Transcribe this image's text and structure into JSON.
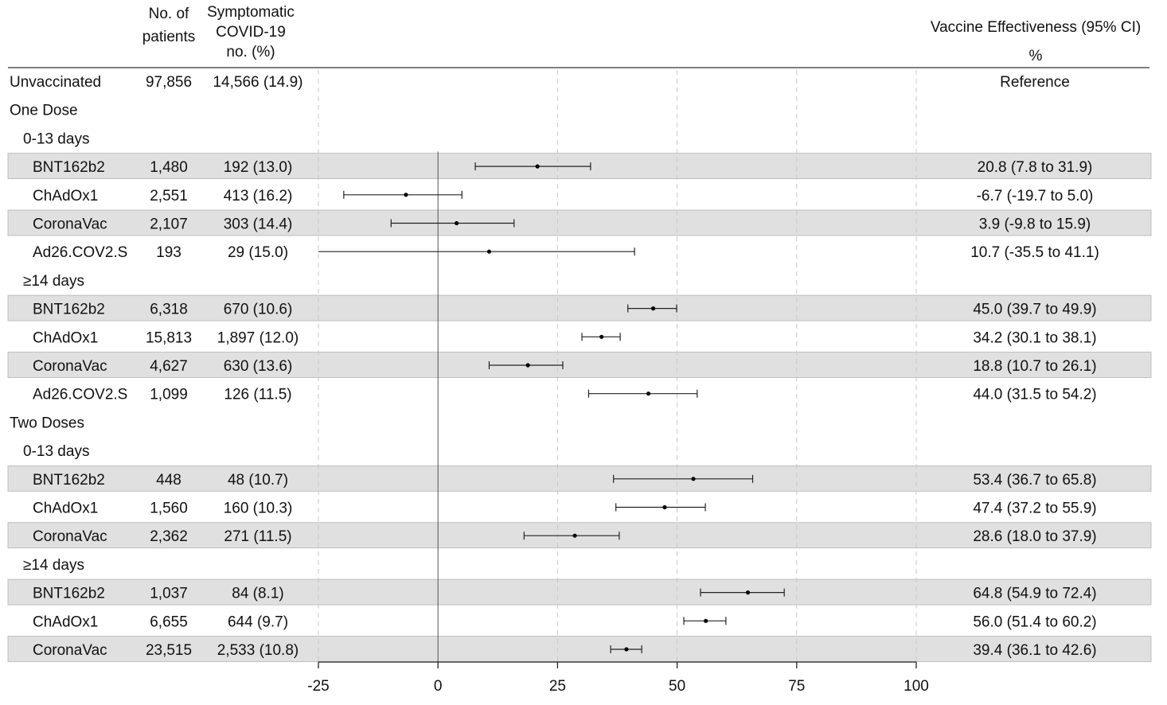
{
  "header": {
    "col_patients": [
      "No. of",
      "patients"
    ],
    "col_symptomatic": [
      "Symptomatic",
      "COVID-19",
      "no. (%)"
    ],
    "col_effectiveness": [
      "Vaccine Effectiveness (95% CI)",
      "%"
    ]
  },
  "chart_data": {
    "type": "forest",
    "x_ticks": [
      -25,
      0,
      25,
      50,
      75,
      100
    ],
    "xlim": [
      -25,
      100
    ],
    "reference_line": 0,
    "grid": "vertical dashed",
    "rows": [
      {
        "kind": "data",
        "label": "Unvaccinated",
        "level": 0,
        "patients": "97,856",
        "symptomatic": "14,566 (14.9)",
        "ve_text": "Reference",
        "shaded": false
      },
      {
        "kind": "group",
        "label": "One Dose",
        "level": 0
      },
      {
        "kind": "group",
        "label": "0-13 days",
        "level": 1
      },
      {
        "kind": "data",
        "label": "BNT162b2",
        "level": 2,
        "patients": "1,480",
        "symptomatic": "192 (13.0)",
        "ve": 20.8,
        "lo": 7.8,
        "hi": 31.9,
        "ve_text": "20.8 (7.8 to 31.9)",
        "shaded": true
      },
      {
        "kind": "data",
        "label": "ChAdOx1",
        "level": 2,
        "patients": "2,551",
        "symptomatic": "413 (16.2)",
        "ve": -6.7,
        "lo": -19.7,
        "hi": 5.0,
        "ve_text": "-6.7 (-19.7 to 5.0)",
        "shaded": false
      },
      {
        "kind": "data",
        "label": "CoronaVac",
        "level": 2,
        "patients": "2,107",
        "symptomatic": "303 (14.4)",
        "ve": 3.9,
        "lo": -9.8,
        "hi": 15.9,
        "ve_text": "3.9 (-9.8 to 15.9)",
        "shaded": true
      },
      {
        "kind": "data",
        "label": "Ad26.COV2.S",
        "level": 2,
        "patients": "193",
        "symptomatic": "29 (15.0)",
        "ve": 10.7,
        "lo": -35.5,
        "hi": 41.1,
        "ve_text": "10.7 (-35.5 to 41.1)",
        "shaded": false
      },
      {
        "kind": "group",
        "label": "≥14 days",
        "level": 1
      },
      {
        "kind": "data",
        "label": "BNT162b2",
        "level": 2,
        "patients": "6,318",
        "symptomatic": "670 (10.6)",
        "ve": 45.0,
        "lo": 39.7,
        "hi": 49.9,
        "ve_text": "45.0 (39.7 to 49.9)",
        "shaded": true
      },
      {
        "kind": "data",
        "label": "ChAdOx1",
        "level": 2,
        "patients": "15,813",
        "symptomatic": "1,897 (12.0)",
        "ve": 34.2,
        "lo": 30.1,
        "hi": 38.1,
        "ve_text": "34.2 (30.1 to 38.1)",
        "shaded": false
      },
      {
        "kind": "data",
        "label": "CoronaVac",
        "level": 2,
        "patients": "4,627",
        "symptomatic": "630 (13.6)",
        "ve": 18.8,
        "lo": 10.7,
        "hi": 26.1,
        "ve_text": "18.8 (10.7 to 26.1)",
        "shaded": true
      },
      {
        "kind": "data",
        "label": "Ad26.COV2.S",
        "level": 2,
        "patients": "1,099",
        "symptomatic": "126 (11.5)",
        "ve": 44.0,
        "lo": 31.5,
        "hi": 54.2,
        "ve_text": "44.0 (31.5 to 54.2)",
        "shaded": false
      },
      {
        "kind": "group",
        "label": "Two Doses",
        "level": 0
      },
      {
        "kind": "group",
        "label": "0-13 days",
        "level": 1
      },
      {
        "kind": "data",
        "label": "BNT162b2",
        "level": 2,
        "patients": "448",
        "symptomatic": "48 (10.7)",
        "ve": 53.4,
        "lo": 36.7,
        "hi": 65.8,
        "ve_text": "53.4 (36.7 to 65.8)",
        "shaded": true
      },
      {
        "kind": "data",
        "label": "ChAdOx1",
        "level": 2,
        "patients": "1,560",
        "symptomatic": "160 (10.3)",
        "ve": 47.4,
        "lo": 37.2,
        "hi": 55.9,
        "ve_text": "47.4 (37.2 to 55.9)",
        "shaded": false
      },
      {
        "kind": "data",
        "label": "CoronaVac",
        "level": 2,
        "patients": "2,362",
        "symptomatic": "271 (11.5)",
        "ve": 28.6,
        "lo": 18.0,
        "hi": 37.9,
        "ve_text": "28.6 (18.0 to 37.9)",
        "shaded": true
      },
      {
        "kind": "group",
        "label": "≥14 days",
        "level": 1
      },
      {
        "kind": "data",
        "label": "BNT162b2",
        "level": 2,
        "patients": "1,037",
        "symptomatic": "84 (8.1)",
        "ve": 64.8,
        "lo": 54.9,
        "hi": 72.4,
        "ve_text": "64.8 (54.9 to 72.4)",
        "shaded": true
      },
      {
        "kind": "data",
        "label": "ChAdOx1",
        "level": 2,
        "patients": "6,655",
        "symptomatic": "644 (9.7)",
        "ve": 56.0,
        "lo": 51.4,
        "hi": 60.2,
        "ve_text": "56.0 (51.4 to 60.2)",
        "shaded": false
      },
      {
        "kind": "data",
        "label": "CoronaVac",
        "level": 2,
        "patients": "23,515",
        "symptomatic": "2,533 (10.8)",
        "ve": 39.4,
        "lo": 36.1,
        "hi": 42.6,
        "ve_text": "39.4 (36.1 to 42.6)",
        "shaded": true
      }
    ]
  }
}
